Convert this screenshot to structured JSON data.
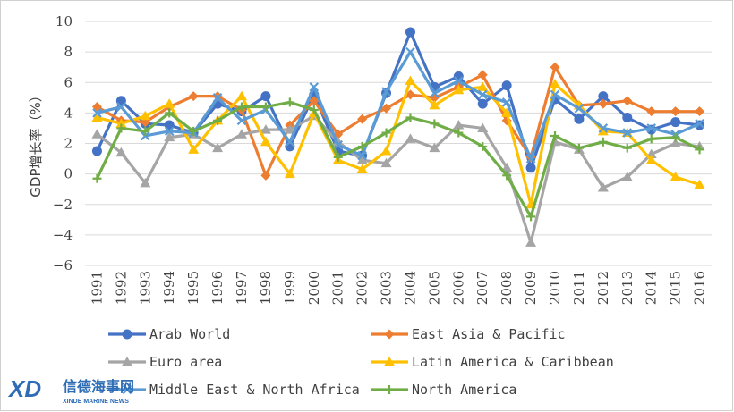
{
  "chart_data": {
    "type": "line",
    "title": "",
    "xlabel": "",
    "ylabel": "GDP增长率（%）",
    "ylim": [
      -6,
      10
    ],
    "yticks": [
      -6,
      -4,
      -2,
      0,
      2,
      4,
      6,
      8,
      10
    ],
    "grid": true,
    "legend_position": "bottom",
    "x": [
      "1991",
      "1992",
      "1993",
      "1994",
      "1995",
      "1996",
      "1997",
      "1998",
      "1999",
      "2000",
      "2001",
      "2002",
      "2003",
      "2004",
      "2005",
      "2006",
      "2007",
      "2008",
      "2009",
      "2010",
      "2011",
      "2012",
      "2013",
      "2014",
      "2015",
      "2016"
    ],
    "series": [
      {
        "name": "Arab World",
        "color": "#4472c4",
        "marker": "circle",
        "values": [
          1.5,
          4.8,
          3.3,
          3.2,
          2.7,
          4.6,
          4.1,
          5.1,
          1.8,
          5.2,
          1.5,
          1.2,
          5.3,
          9.3,
          5.7,
          6.4,
          4.6,
          5.8,
          0.4,
          4.9,
          3.6,
          5.1,
          3.7,
          2.9,
          3.4,
          3.2
        ]
      },
      {
        "name": "East Asia & Pacific",
        "color": "#ed7d31",
        "marker": "diamond",
        "values": [
          4.4,
          3.5,
          3.4,
          4.4,
          5.1,
          5.1,
          4.2,
          -0.1,
          3.2,
          4.8,
          2.6,
          3.6,
          4.3,
          5.2,
          5.0,
          5.7,
          6.5,
          3.5,
          1.1,
          7.0,
          4.5,
          4.6,
          4.8,
          4.1,
          4.1,
          4.1
        ]
      },
      {
        "name": "Euro area",
        "color": "#a5a5a5",
        "marker": "triangle",
        "values": [
          2.6,
          1.4,
          -0.6,
          2.4,
          2.6,
          1.7,
          2.6,
          2.9,
          2.9,
          3.8,
          2.1,
          0.9,
          0.7,
          2.3,
          1.7,
          3.2,
          3.0,
          0.4,
          -4.5,
          2.1,
          1.6,
          -0.9,
          -0.2,
          1.3,
          2.0,
          1.8
        ]
      },
      {
        "name": "Latin America & Caribbean",
        "color": "#ffc000",
        "marker": "triangle",
        "values": [
          3.7,
          3.3,
          3.8,
          4.6,
          1.6,
          3.5,
          5.1,
          2.1,
          0.0,
          4.0,
          0.9,
          0.3,
          1.5,
          6.1,
          4.5,
          5.5,
          5.7,
          4.0,
          -2.0,
          5.9,
          4.5,
          2.8,
          2.7,
          0.9,
          -0.2,
          -0.7
        ]
      },
      {
        "name": "Middle East & North Africa",
        "color": "#5b9bd5",
        "marker": "x",
        "values": [
          4.0,
          4.4,
          2.5,
          2.8,
          2.7,
          5.0,
          3.5,
          4.2,
          2.1,
          5.7,
          1.9,
          1.2,
          5.4,
          8.0,
          5.3,
          6.1,
          5.2,
          4.7,
          1.0,
          5.2,
          4.3,
          3.0,
          2.7,
          3.0,
          2.6,
          3.3
        ]
      },
      {
        "name": "North America",
        "color": "#70ad47",
        "marker": "plus",
        "values": [
          -0.3,
          3.0,
          2.8,
          4.0,
          2.8,
          3.5,
          4.4,
          4.4,
          4.7,
          4.2,
          1.1,
          1.8,
          2.7,
          3.7,
          3.3,
          2.7,
          1.8,
          -0.1,
          -2.8,
          2.5,
          1.7,
          2.1,
          1.7,
          2.3,
          2.4,
          1.6
        ]
      }
    ]
  },
  "watermark": {
    "cn": "信德海事网",
    "en": "XINDE MARINE NEWS",
    "logo": "XD"
  }
}
